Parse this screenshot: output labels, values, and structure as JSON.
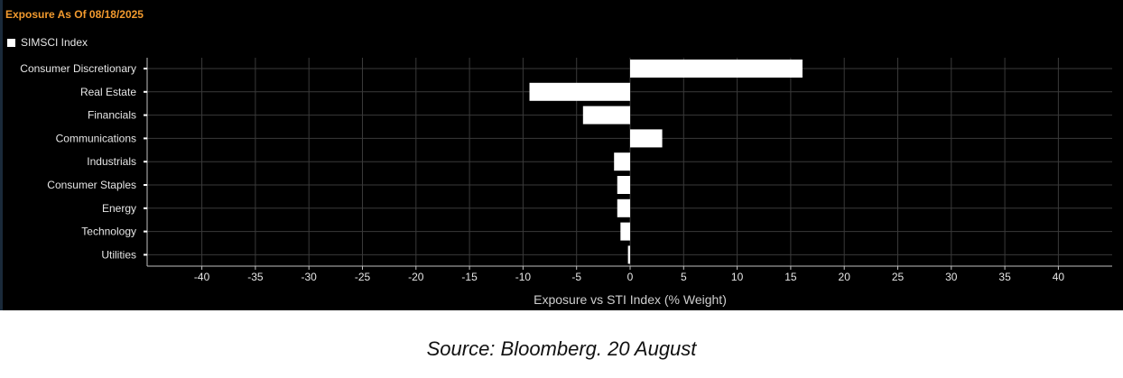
{
  "chart_data": {
    "type": "bar",
    "orientation": "horizontal",
    "title": "Exposure As Of 08/18/2025",
    "legend": [
      "SIMSCI Index"
    ],
    "legend_position": "top-left",
    "xlabel": "Exposure vs STI Index (% Weight)",
    "ylabel": "",
    "xlim": [
      -45,
      45
    ],
    "xticks": [
      -40,
      -35,
      -30,
      -25,
      -20,
      -15,
      -10,
      -5,
      0,
      5,
      10,
      15,
      20,
      25,
      30,
      35,
      40
    ],
    "grid": true,
    "categories": [
      "Consumer Discretionary",
      "Real Estate",
      "Financials",
      "Communications",
      "Industrials",
      "Consumer Staples",
      "Energy",
      "Technology",
      "Utilities"
    ],
    "series": [
      {
        "name": "SIMSCI Index",
        "values": [
          16.1,
          -9.4,
          -4.4,
          3.0,
          -1.5,
          -1.2,
          -1.2,
          -0.9,
          -0.2
        ]
      }
    ]
  },
  "colors": {
    "background": "#000000",
    "bar": "#ffffff",
    "title": "#f29a2e",
    "grid": "#3a3a3a",
    "text": "#e6e6e6"
  },
  "caption": "Source: Bloomberg. 20 August"
}
